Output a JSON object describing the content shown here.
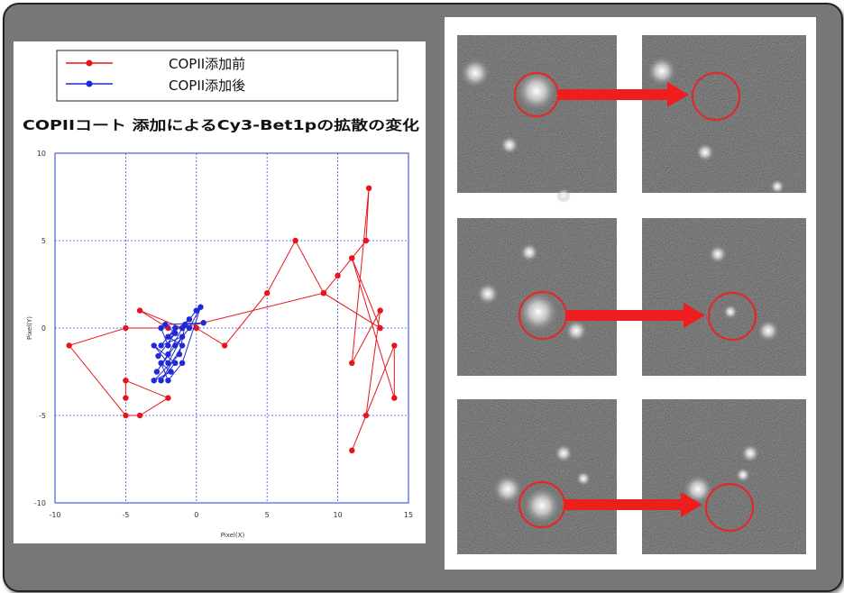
{
  "chart_data": {
    "type": "scatter",
    "title": "COPIIコート 添加によるCy3-Bet1pの拡散の変化",
    "xlabel": "Pixel(X)",
    "ylabel": "Pixel(Y)",
    "xlim": [
      -10,
      15
    ],
    "ylim": [
      -10,
      10
    ],
    "xticks": [
      -10,
      -5,
      0,
      5,
      10,
      15
    ],
    "yticks": [
      -10,
      -5,
      0,
      5,
      10
    ],
    "grid": true,
    "legend_position": "top",
    "series": [
      {
        "name": "COPII添加前",
        "color": "#e8141c",
        "points": [
          [
            0,
            0
          ],
          [
            2,
            -1
          ],
          [
            5,
            2
          ],
          [
            7,
            5
          ],
          [
            9,
            2
          ],
          [
            10,
            3
          ],
          [
            11,
            4
          ],
          [
            12,
            5
          ],
          [
            12.2,
            8
          ],
          [
            11,
            -2
          ],
          [
            13,
            1
          ],
          [
            12,
            -5
          ],
          [
            11,
            -7
          ],
          [
            14,
            -1
          ],
          [
            14,
            -4
          ],
          [
            11,
            4
          ],
          [
            13,
            0
          ],
          [
            9,
            2
          ],
          [
            -1,
            0
          ],
          [
            -4,
            1
          ],
          [
            -2,
            0
          ],
          [
            -5,
            0
          ],
          [
            -9,
            -1
          ],
          [
            -5,
            -5
          ],
          [
            -4,
            -5
          ],
          [
            -2,
            -4
          ],
          [
            -5,
            -3
          ],
          [
            -5,
            -4
          ]
        ]
      },
      {
        "name": "COPII添加後",
        "color": "#1f2ad6",
        "points": [
          [
            -2.5,
            0
          ],
          [
            -2,
            -1
          ],
          [
            -1.5,
            0
          ],
          [
            -2.5,
            -1
          ],
          [
            -1,
            -0.5
          ],
          [
            -2,
            -2
          ],
          [
            -3,
            -1
          ],
          [
            -1.5,
            -2
          ],
          [
            -2.5,
            -3
          ],
          [
            -1,
            -1
          ],
          [
            -2,
            -0.5
          ],
          [
            -0.5,
            0.5
          ],
          [
            0,
            1
          ],
          [
            -1,
            0
          ],
          [
            -2,
            -1.5
          ],
          [
            -2.8,
            -2.5
          ],
          [
            -1.5,
            -1
          ],
          [
            -0.5,
            0
          ],
          [
            0.3,
            1.2
          ],
          [
            -1,
            -2
          ],
          [
            -2,
            -3
          ],
          [
            -2.5,
            -2
          ],
          [
            -1.8,
            -2.5
          ],
          [
            -3,
            -3
          ],
          [
            -1.2,
            -1.5
          ],
          [
            -0.8,
            0.2
          ],
          [
            0.5,
            0.3
          ],
          [
            -2.2,
            0.2
          ],
          [
            -1.5,
            -0.3
          ],
          [
            -2.7,
            -1.6
          ]
        ]
      }
    ]
  },
  "micrographs": {
    "arrow_color": "#ef1e1e",
    "circle_color": "#e02a2a",
    "rows": 3
  }
}
